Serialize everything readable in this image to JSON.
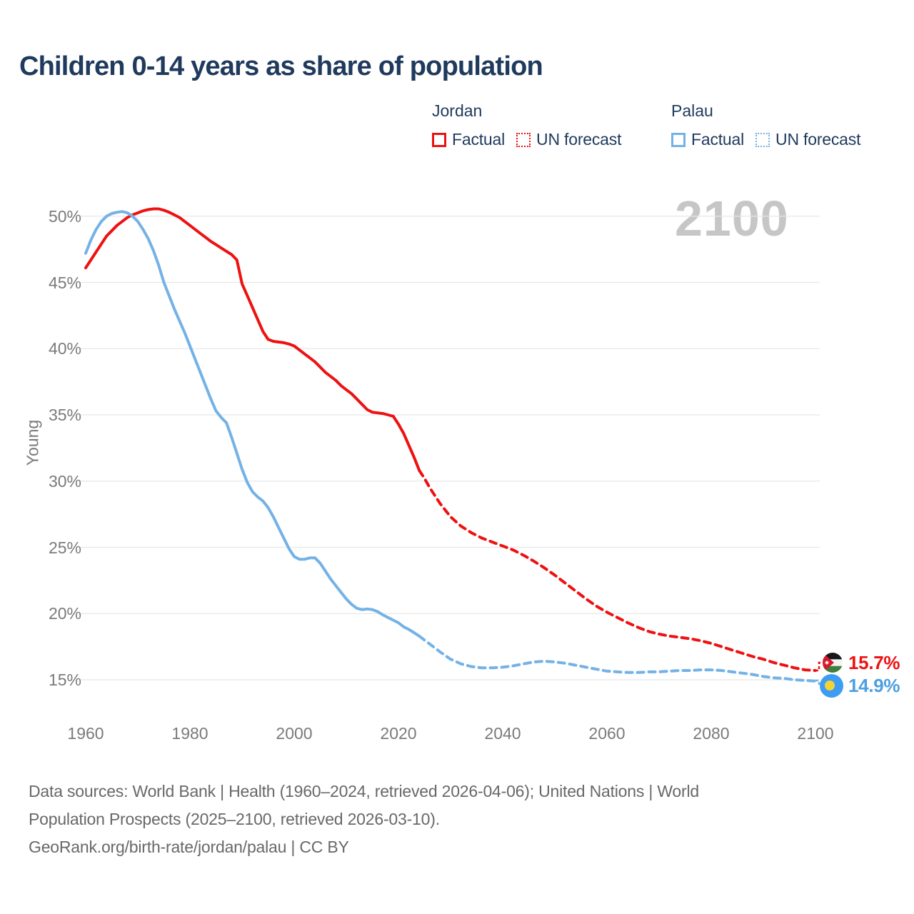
{
  "title": "Children 0-14 years as share of population",
  "watermark": "2100",
  "legend": {
    "groups": [
      {
        "name": "Jordan",
        "color": "#ee1111",
        "factual_label": "Factual",
        "forecast_label": "UN forecast"
      },
      {
        "name": "Palau",
        "color": "#74b2e6",
        "factual_label": "Factual",
        "forecast_label": "UN forecast"
      }
    ]
  },
  "axes": {
    "y_title": "Young",
    "y_ticks": [
      50,
      45,
      40,
      35,
      30,
      25,
      20,
      15
    ],
    "y_tick_suffix": "%",
    "x_ticks": [
      1960,
      1980,
      2000,
      2020,
      2040,
      2060,
      2080,
      2100
    ]
  },
  "end_labels": [
    {
      "country": "Jordan",
      "value": "15.7%",
      "color": "#ee1111",
      "flag": "jordan-flag"
    },
    {
      "country": "Palau",
      "value": "14.9%",
      "color": "#4d9fdf",
      "flag": "palau-flag"
    }
  ],
  "footer": {
    "line1": "Data sources: World Bank | Health (1960–2024, retrieved 2026-04-06); United Nations | World",
    "line2": "Population Prospects (2025–2100, retrieved 2026-03-10).",
    "line3": "GeoRank.org/birth-rate/jordan/palau | CC BY"
  },
  "chart_data": {
    "type": "line",
    "title": "Children 0-14 years as share of population",
    "xlabel": "",
    "ylabel": "Young",
    "xlim": [
      1960,
      2100
    ],
    "ylim": [
      15,
      50
    ],
    "y_unit": "percent",
    "grid": "horizontal",
    "legend_position": "top-right",
    "series": [
      {
        "name": "Jordan Factual",
        "key": "jordan-factual",
        "color": "#ee1111",
        "dash": false,
        "points": [
          [
            1960,
            46.1
          ],
          [
            1961,
            46.7
          ],
          [
            1962,
            47.3
          ],
          [
            1963,
            47.9
          ],
          [
            1964,
            48.5
          ],
          [
            1965,
            48.9
          ],
          [
            1966,
            49.3
          ],
          [
            1967,
            49.6
          ],
          [
            1968,
            49.9
          ],
          [
            1969,
            50.1
          ],
          [
            1970,
            50.25
          ],
          [
            1971,
            50.4
          ],
          [
            1972,
            50.5
          ],
          [
            1973,
            50.55
          ],
          [
            1974,
            50.55
          ],
          [
            1975,
            50.45
          ],
          [
            1976,
            50.3
          ],
          [
            1977,
            50.1
          ],
          [
            1978,
            49.9
          ],
          [
            1979,
            49.6
          ],
          [
            1980,
            49.3
          ],
          [
            1981,
            49.0
          ],
          [
            1982,
            48.7
          ],
          [
            1983,
            48.4
          ],
          [
            1984,
            48.1
          ],
          [
            1985,
            47.85
          ],
          [
            1986,
            47.6
          ],
          [
            1987,
            47.35
          ],
          [
            1988,
            47.1
          ],
          [
            1989,
            46.7
          ],
          [
            1990,
            44.9
          ],
          [
            1991,
            44.0
          ],
          [
            1992,
            43.1
          ],
          [
            1993,
            42.2
          ],
          [
            1994,
            41.3
          ],
          [
            1995,
            40.7
          ],
          [
            1996,
            40.55
          ],
          [
            1997,
            40.5
          ],
          [
            1998,
            40.45
          ],
          [
            1999,
            40.35
          ],
          [
            2000,
            40.2
          ],
          [
            2001,
            39.9
          ],
          [
            2002,
            39.6
          ],
          [
            2003,
            39.3
          ],
          [
            2004,
            39.0
          ],
          [
            2005,
            38.6
          ],
          [
            2006,
            38.2
          ],
          [
            2007,
            37.9
          ],
          [
            2008,
            37.6
          ],
          [
            2009,
            37.2
          ],
          [
            2010,
            36.9
          ],
          [
            2011,
            36.6
          ],
          [
            2012,
            36.2
          ],
          [
            2013,
            35.8
          ],
          [
            2014,
            35.4
          ],
          [
            2015,
            35.2
          ],
          [
            2016,
            35.15
          ],
          [
            2017,
            35.1
          ],
          [
            2018,
            35.0
          ],
          [
            2019,
            34.9
          ],
          [
            2020,
            34.3
          ],
          [
            2021,
            33.6
          ],
          [
            2022,
            32.7
          ],
          [
            2023,
            31.8
          ],
          [
            2024,
            30.8
          ]
        ]
      },
      {
        "name": "Jordan UN forecast",
        "key": "jordan-forecast",
        "color": "#ee1111",
        "dash": true,
        "points": [
          [
            2024,
            30.8
          ],
          [
            2025,
            30.2
          ],
          [
            2026,
            29.5
          ],
          [
            2028,
            28.3
          ],
          [
            2030,
            27.3
          ],
          [
            2032,
            26.6
          ],
          [
            2034,
            26.1
          ],
          [
            2036,
            25.7
          ],
          [
            2038,
            25.4
          ],
          [
            2040,
            25.1
          ],
          [
            2042,
            24.8
          ],
          [
            2044,
            24.4
          ],
          [
            2046,
            23.95
          ],
          [
            2048,
            23.45
          ],
          [
            2050,
            22.9
          ],
          [
            2052,
            22.3
          ],
          [
            2054,
            21.7
          ],
          [
            2056,
            21.1
          ],
          [
            2058,
            20.55
          ],
          [
            2060,
            20.1
          ],
          [
            2062,
            19.7
          ],
          [
            2064,
            19.3
          ],
          [
            2066,
            18.95
          ],
          [
            2068,
            18.65
          ],
          [
            2070,
            18.45
          ],
          [
            2072,
            18.3
          ],
          [
            2074,
            18.2
          ],
          [
            2076,
            18.1
          ],
          [
            2078,
            17.95
          ],
          [
            2080,
            17.75
          ],
          [
            2082,
            17.5
          ],
          [
            2084,
            17.25
          ],
          [
            2086,
            17.0
          ],
          [
            2088,
            16.75
          ],
          [
            2090,
            16.55
          ],
          [
            2092,
            16.3
          ],
          [
            2094,
            16.1
          ],
          [
            2096,
            15.9
          ],
          [
            2098,
            15.75
          ],
          [
            2100,
            15.7
          ]
        ]
      },
      {
        "name": "Palau Factual",
        "key": "palau-factual",
        "color": "#74b2e6",
        "dash": false,
        "points": [
          [
            1960,
            47.2
          ],
          [
            1961,
            48.2
          ],
          [
            1962,
            49.0
          ],
          [
            1963,
            49.6
          ],
          [
            1964,
            50.0
          ],
          [
            1965,
            50.2
          ],
          [
            1966,
            50.3
          ],
          [
            1967,
            50.35
          ],
          [
            1968,
            50.25
          ],
          [
            1969,
            50.0
          ],
          [
            1970,
            49.6
          ],
          [
            1971,
            49.0
          ],
          [
            1972,
            48.3
          ],
          [
            1973,
            47.4
          ],
          [
            1974,
            46.3
          ],
          [
            1975,
            45.0
          ],
          [
            1976,
            44.0
          ],
          [
            1977,
            43.0
          ],
          [
            1978,
            42.1
          ],
          [
            1979,
            41.2
          ],
          [
            1980,
            40.2
          ],
          [
            1981,
            39.2
          ],
          [
            1982,
            38.2
          ],
          [
            1983,
            37.2
          ],
          [
            1984,
            36.2
          ],
          [
            1985,
            35.3
          ],
          [
            1986,
            34.8
          ],
          [
            1987,
            34.4
          ],
          [
            1988,
            33.3
          ],
          [
            1989,
            32.1
          ],
          [
            1990,
            30.9
          ],
          [
            1991,
            29.9
          ],
          [
            1992,
            29.2
          ],
          [
            1993,
            28.8
          ],
          [
            1994,
            28.5
          ],
          [
            1995,
            28.0
          ],
          [
            1996,
            27.3
          ],
          [
            1997,
            26.5
          ],
          [
            1998,
            25.7
          ],
          [
            1999,
            24.9
          ],
          [
            2000,
            24.3
          ],
          [
            2001,
            24.1
          ],
          [
            2002,
            24.1
          ],
          [
            2003,
            24.2
          ],
          [
            2004,
            24.2
          ],
          [
            2005,
            23.8
          ],
          [
            2006,
            23.2
          ],
          [
            2007,
            22.6
          ],
          [
            2008,
            22.1
          ],
          [
            2009,
            21.6
          ],
          [
            2010,
            21.1
          ],
          [
            2011,
            20.7
          ],
          [
            2012,
            20.4
          ],
          [
            2013,
            20.3
          ],
          [
            2014,
            20.35
          ],
          [
            2015,
            20.3
          ],
          [
            2016,
            20.15
          ],
          [
            2017,
            19.9
          ],
          [
            2018,
            19.7
          ],
          [
            2019,
            19.5
          ],
          [
            2020,
            19.3
          ],
          [
            2021,
            19.0
          ],
          [
            2022,
            18.8
          ],
          [
            2023,
            18.55
          ],
          [
            2024,
            18.3
          ]
        ]
      },
      {
        "name": "Palau UN forecast",
        "key": "palau-forecast",
        "color": "#74b2e6",
        "dash": true,
        "points": [
          [
            2024,
            18.3
          ],
          [
            2025,
            18.0
          ],
          [
            2026,
            17.7
          ],
          [
            2028,
            17.1
          ],
          [
            2030,
            16.55
          ],
          [
            2032,
            16.2
          ],
          [
            2034,
            16.0
          ],
          [
            2036,
            15.9
          ],
          [
            2038,
            15.9
          ],
          [
            2040,
            15.95
          ],
          [
            2042,
            16.05
          ],
          [
            2044,
            16.2
          ],
          [
            2046,
            16.35
          ],
          [
            2048,
            16.4
          ],
          [
            2050,
            16.35
          ],
          [
            2052,
            16.25
          ],
          [
            2054,
            16.1
          ],
          [
            2056,
            15.95
          ],
          [
            2058,
            15.8
          ],
          [
            2060,
            15.65
          ],
          [
            2062,
            15.6
          ],
          [
            2064,
            15.55
          ],
          [
            2066,
            15.55
          ],
          [
            2068,
            15.6
          ],
          [
            2070,
            15.6
          ],
          [
            2072,
            15.65
          ],
          [
            2074,
            15.7
          ],
          [
            2076,
            15.7
          ],
          [
            2078,
            15.75
          ],
          [
            2080,
            15.75
          ],
          [
            2082,
            15.7
          ],
          [
            2084,
            15.6
          ],
          [
            2086,
            15.5
          ],
          [
            2088,
            15.4
          ],
          [
            2090,
            15.25
          ],
          [
            2092,
            15.15
          ],
          [
            2094,
            15.1
          ],
          [
            2096,
            15.0
          ],
          [
            2098,
            14.95
          ],
          [
            2100,
            14.9
          ]
        ]
      }
    ],
    "end_values": {
      "jordan": 15.7,
      "palau": 14.9
    }
  }
}
